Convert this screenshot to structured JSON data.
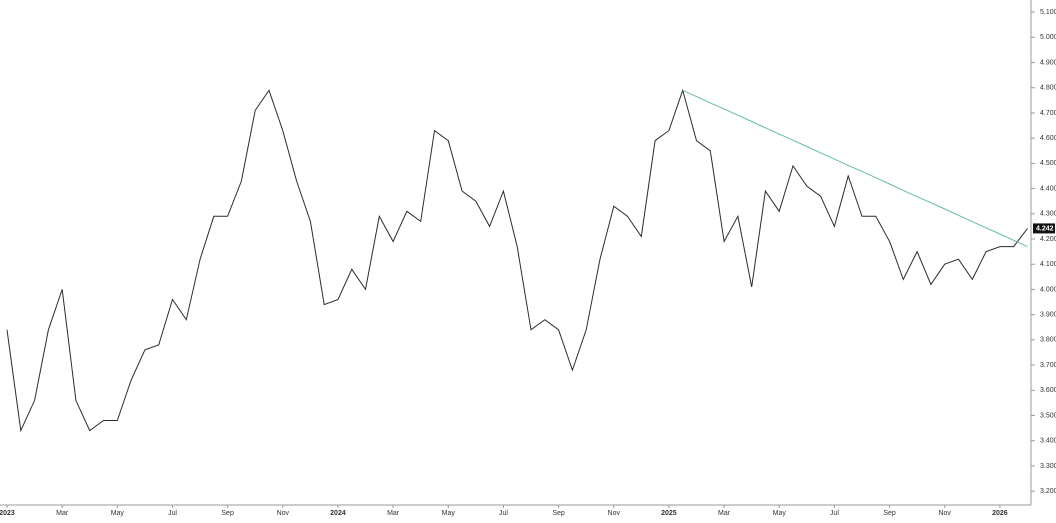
{
  "chart_data": {
    "type": "line",
    "categories": [
      "2023",
      null,
      null,
      null,
      "Mar",
      null,
      null,
      null,
      "May",
      null,
      null,
      null,
      "Jul",
      null,
      null,
      null,
      "Sep",
      null,
      null,
      null,
      "Nov",
      null,
      null,
      null,
      "2024",
      null,
      null,
      null,
      "Mar",
      null,
      null,
      null,
      "May",
      null,
      null,
      null,
      "Jul",
      null,
      null,
      null,
      "Sep",
      null,
      null,
      null,
      "Nov",
      null,
      null,
      null,
      "2025",
      null,
      null,
      null,
      "Mar",
      null,
      null,
      null,
      "May",
      null,
      null,
      null,
      "Jul",
      null,
      null,
      null,
      "Sep",
      null,
      null,
      null,
      "Nov",
      null,
      null,
      null,
      "2026",
      null,
      null
    ],
    "series": [
      {
        "color": "#2b2b2b",
        "values": [
          3.84,
          3.44,
          3.56,
          3.84,
          4.0,
          3.56,
          3.44,
          3.48,
          3.48,
          3.64,
          3.76,
          3.78,
          3.96,
          3.88,
          4.12,
          4.29,
          4.29,
          4.43,
          4.71,
          4.79,
          4.63,
          4.43,
          4.27,
          3.94,
          3.96,
          4.08,
          4.0,
          4.29,
          4.19,
          4.31,
          4.27,
          4.63,
          4.59,
          4.39,
          4.35,
          4.25,
          4.39,
          4.17,
          3.84,
          3.88,
          3.84,
          3.68,
          3.84,
          4.12,
          4.33,
          4.29,
          4.21,
          4.59,
          4.63,
          4.79,
          4.59,
          4.55,
          4.19,
          4.29,
          4.01,
          4.39,
          4.31,
          4.49,
          4.41,
          4.37,
          4.25,
          4.45,
          4.29,
          4.29,
          4.19,
          4.04,
          4.15,
          4.02,
          4.1,
          4.12,
          4.04,
          4.15,
          4.17,
          4.17,
          4.242
        ]
      },
      {
        "color": "#5fbfa0",
        "values": [
          null,
          null,
          null,
          null,
          null,
          null,
          null,
          null,
          null,
          null,
          null,
          null,
          null,
          null,
          null,
          null,
          null,
          null,
          null,
          null,
          null,
          null,
          null,
          null,
          null,
          null,
          null,
          null,
          null,
          null,
          null,
          null,
          null,
          null,
          null,
          null,
          null,
          null,
          null,
          null,
          null,
          null,
          null,
          null,
          null,
          null,
          null,
          null,
          null,
          4.79,
          4.765,
          4.74,
          4.716,
          4.691,
          4.666,
          4.641,
          4.616,
          4.592,
          4.567,
          4.542,
          4.517,
          4.492,
          4.468,
          4.443,
          4.418,
          4.393,
          4.368,
          4.344,
          4.319,
          4.294,
          4.269,
          4.244,
          4.22,
          4.195,
          4.17
        ]
      }
    ],
    "last_label": {
      "value": 4.242,
      "label": "4.242"
    },
    "ylim": [
      3.145,
      5.148
    ],
    "yticks": [
      {
        "value": 3.2,
        "label": "3.200"
      },
      {
        "value": 3.3,
        "label": "3.300"
      },
      {
        "value": 3.4,
        "label": "3.400"
      },
      {
        "value": 3.5,
        "label": "3.500"
      },
      {
        "value": 3.6,
        "label": "3.600"
      },
      {
        "value": 3.7,
        "label": "3.700"
      },
      {
        "value": 3.8,
        "label": "3.800"
      },
      {
        "value": 3.9,
        "label": "3.900"
      },
      {
        "value": 4.0,
        "label": "4.000"
      },
      {
        "value": 4.1,
        "label": "4.100"
      },
      {
        "value": 4.2,
        "label": "4.200"
      },
      {
        "value": 4.3,
        "label": "4.300"
      },
      {
        "value": 4.4,
        "label": "4.400"
      },
      {
        "value": 4.5,
        "label": "4.500"
      },
      {
        "value": 4.6,
        "label": "4.600"
      },
      {
        "value": 4.7,
        "label": "4.700"
      },
      {
        "value": 4.8,
        "label": "4.800"
      },
      {
        "value": 4.9,
        "label": "4.900"
      },
      {
        "value": 5.0,
        "label": "5.000"
      },
      {
        "value": 5.1,
        "label": "5.100"
      }
    ]
  }
}
